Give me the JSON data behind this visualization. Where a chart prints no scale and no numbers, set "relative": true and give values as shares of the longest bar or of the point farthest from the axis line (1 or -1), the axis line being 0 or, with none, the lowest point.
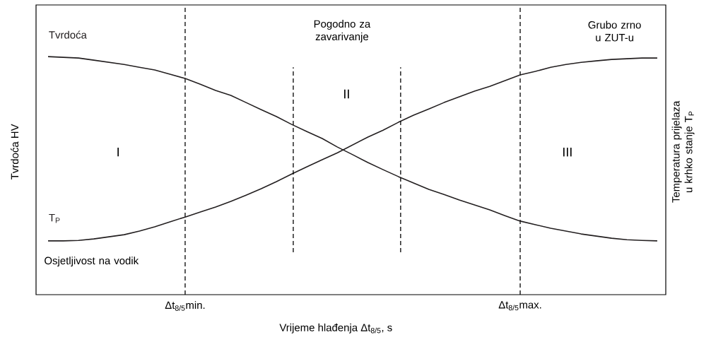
{
  "chart_data": {
    "type": "line",
    "relative": true,
    "xlabel": "Vrijeme hlađenja  Δt$_{8/5}$, s",
    "ylabel": "Tvrdoća  HV",
    "y2label": "Temperatura prijelaza u krhko stanje T$_{P}$",
    "categories": [
      null,
      null,
      null,
      null,
      null,
      null,
      null,
      null,
      null,
      "Δt$_{8/5}$min.",
      null,
      null,
      null,
      null,
      null,
      null,
      null,
      null,
      null,
      null,
      null,
      null,
      null,
      null,
      null,
      null,
      null,
      null,
      null,
      null,
      null,
      "Δt$_{8/5}$max.",
      null,
      null,
      null,
      null,
      null,
      null,
      null,
      null,
      null
    ],
    "series": [
      {
        "name": "Tvrdoća",
        "color": "#231f20",
        "values": [
          1.0,
          0.997,
          0.994,
          0.985,
          0.976,
          0.967,
          0.955,
          0.944,
          0.926,
          0.908,
          0.884,
          0.858,
          0.837,
          0.807,
          0.777,
          0.748,
          0.715,
          0.685,
          0.656,
          0.62,
          0.588,
          0.555,
          0.525,
          0.496,
          0.469,
          0.442,
          0.421,
          0.398,
          0.377,
          0.356,
          0.332,
          0.309,
          0.294,
          0.279,
          0.267,
          0.255,
          0.246,
          0.237,
          0.231,
          0.228,
          0.226
        ]
      },
      {
        "name": "T$_{P}$",
        "color": "#231f20",
        "values": [
          0.226,
          0.226,
          0.228,
          0.234,
          0.243,
          0.252,
          0.267,
          0.285,
          0.306,
          0.326,
          0.347,
          0.368,
          0.392,
          0.418,
          0.445,
          0.475,
          0.507,
          0.537,
          0.567,
          0.596,
          0.629,
          0.662,
          0.691,
          0.724,
          0.754,
          0.78,
          0.807,
          0.831,
          0.855,
          0.875,
          0.899,
          0.923,
          0.938,
          0.955,
          0.967,
          0.976,
          0.982,
          0.988,
          0.991,
          0.994,
          0.994
        ]
      }
    ],
    "grid": "x",
    "annotations": [
      "I",
      "II",
      "III",
      "Grubo zrno u ZUT-u",
      "Osjetljivost na vodik",
      "Pogodno za zavarivanje"
    ]
  }
}
